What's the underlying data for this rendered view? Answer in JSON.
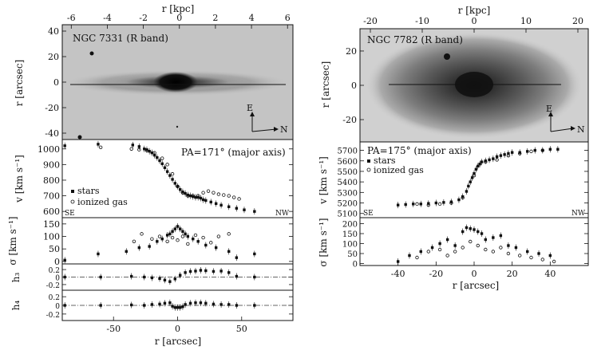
{
  "figure": {
    "top_axis_label": "r [kpc]",
    "bottom_axis_label": "r [arcsec]",
    "label_r_arcsec": "r [arcsec]",
    "label_v": "v [km s⁻¹]",
    "label_sigma": "σ [km s⁻¹]",
    "label_h3": "h₃",
    "label_h4": "h₄",
    "compass_E": "E",
    "compass_N": "N",
    "side_SE": "SE",
    "side_NW": "NW",
    "legend_stars": "stars",
    "legend_gas": "ionized gas"
  },
  "left": {
    "galaxy_label": "NGC 7331 (R band)",
    "pa_label": "PA=171° (major axis)"
  },
  "right": {
    "galaxy_label": "NGC 7782 (R band)",
    "pa_label": "PA=175° (major axis)"
  },
  "chart_data": [
    {
      "id": "ngc7331_image",
      "type": "image",
      "title": "NGC 7331 (R band)",
      "xlabel": "r [kpc]",
      "ylabel": "r [arcsec]",
      "xlim": [
        -6.5,
        6.3
      ],
      "ylim": [
        -45,
        45
      ],
      "xticks": [
        -6,
        -4,
        -2,
        0,
        2,
        4,
        6
      ],
      "yticks": [
        -40,
        -20,
        0,
        20,
        40
      ]
    },
    {
      "id": "ngc7331_v",
      "type": "scatter",
      "ylabel": "v [km s⁻¹]",
      "xlim": [
        -90,
        90
      ],
      "ylim": [
        560,
        1060
      ],
      "yticks": [
        600,
        700,
        800,
        900,
        1000
      ],
      "series": [
        {
          "name": "stars",
          "x": [
            -88,
            -62,
            -35,
            -30,
            -26,
            -24,
            -22,
            -20,
            -18,
            -16,
            -14,
            -12,
            -10,
            -8,
            -6,
            -4,
            -2,
            0,
            2,
            4,
            6,
            8,
            10,
            12,
            14,
            16,
            18,
            20,
            22,
            26,
            30,
            34,
            40,
            46,
            52,
            60
          ],
          "y": [
            1020,
            1030,
            1025,
            1015,
            1000,
            995,
            985,
            975,
            960,
            945,
            925,
            905,
            880,
            855,
            830,
            805,
            780,
            760,
            740,
            725,
            715,
            705,
            700,
            695,
            690,
            690,
            685,
            675,
            670,
            660,
            650,
            640,
            630,
            620,
            610,
            600
          ]
        },
        {
          "name": "ionized gas",
          "x": [
            -60,
            -36,
            -30,
            -24,
            -18,
            -12,
            -8,
            -4,
            0,
            4,
            8,
            12,
            16,
            20,
            24,
            28,
            32,
            36,
            40,
            44,
            48
          ],
          "y": [
            1010,
            1000,
            995,
            990,
            975,
            940,
            900,
            840,
            760,
            720,
            700,
            700,
            700,
            720,
            730,
            720,
            710,
            705,
            700,
            690,
            680
          ]
        }
      ]
    },
    {
      "id": "ngc7331_sigma",
      "type": "scatter",
      "ylabel": "σ [km s⁻¹]",
      "xlim": [
        -90,
        90
      ],
      "ylim": [
        -10,
        175
      ],
      "yticks": [
        0,
        50,
        100,
        150
      ],
      "series": [
        {
          "name": "stars",
          "x": [
            -88,
            -62,
            -40,
            -30,
            -22,
            -16,
            -12,
            -8,
            -6,
            -4,
            -2,
            0,
            2,
            4,
            6,
            8,
            12,
            16,
            22,
            30,
            40,
            46,
            60
          ],
          "y": [
            5,
            30,
            40,
            55,
            60,
            80,
            90,
            105,
            110,
            120,
            130,
            140,
            130,
            120,
            110,
            100,
            90,
            80,
            65,
            55,
            40,
            15,
            30
          ]
        },
        {
          "name": "ionized gas",
          "x": [
            -34,
            -28,
            -20,
            -14,
            -8,
            -4,
            0,
            4,
            8,
            14,
            20,
            26,
            32,
            40
          ],
          "y": [
            80,
            110,
            90,
            100,
            80,
            95,
            85,
            100,
            70,
            105,
            95,
            75,
            100,
            110
          ]
        }
      ]
    },
    {
      "id": "ngc7331_h3",
      "type": "scatter",
      "ylabel": "h₃",
      "xlim": [
        -90,
        90
      ],
      "ylim": [
        -0.35,
        0.35
      ],
      "yticks": [
        -0.2,
        0,
        0.2
      ],
      "series": [
        {
          "name": "stars",
          "x": [
            -88,
            -60,
            -36,
            -26,
            -20,
            -14,
            -10,
            -6,
            -2,
            2,
            6,
            10,
            14,
            18,
            22,
            28,
            34,
            40,
            46,
            60
          ],
          "y": [
            0,
            0,
            0.02,
            0.0,
            -0.02,
            -0.04,
            -0.08,
            -0.12,
            -0.05,
            0.05,
            0.12,
            0.15,
            0.16,
            0.18,
            0.17,
            0.15,
            0.16,
            0.12,
            0.02,
            0.0
          ]
        }
      ]
    },
    {
      "id": "ngc7331_h4",
      "type": "scatter",
      "ylabel": "h₄",
      "xlim": [
        -90,
        90
      ],
      "ylim": [
        -0.35,
        0.35
      ],
      "yticks": [
        -0.2,
        0,
        0.2
      ],
      "series": [
        {
          "name": "stars",
          "x": [
            -88,
            -60,
            -36,
            -26,
            -20,
            -14,
            -10,
            -6,
            -4,
            -2,
            0,
            2,
            4,
            6,
            10,
            14,
            18,
            22,
            28,
            34,
            40,
            46,
            60
          ],
          "y": [
            0,
            0,
            0.01,
            0.0,
            0.02,
            0.03,
            0.05,
            0.06,
            -0.02,
            -0.05,
            -0.05,
            -0.05,
            -0.03,
            0.02,
            0.05,
            0.06,
            0.06,
            0.05,
            0.03,
            0.02,
            0.02,
            0.0,
            0.0
          ]
        }
      ]
    },
    {
      "id": "ngc7782_image",
      "type": "image",
      "title": "NGC 7782 (R band)",
      "xlabel": "r [kpc]",
      "ylabel": "r [arcsec]",
      "xlim": [
        -22,
        22
      ],
      "ylim": [
        -33,
        33
      ],
      "xticks": [
        -20,
        -10,
        0,
        10,
        20
      ],
      "yticks": [
        -20,
        0,
        20
      ]
    },
    {
      "id": "ngc7782_v",
      "type": "scatter",
      "ylabel": "v [km s⁻¹]",
      "xlabel": "",
      "xlim": [
        -60,
        60
      ],
      "ylim": [
        5060,
        5780
      ],
      "yticks": [
        5100,
        5200,
        5300,
        5400,
        5500,
        5600,
        5700
      ],
      "series": [
        {
          "name": "stars",
          "x": [
            -40,
            -36,
            -32,
            -28,
            -24,
            -20,
            -16,
            -12,
            -8,
            -6,
            -4,
            -3,
            -2,
            -1,
            0,
            1,
            2,
            3,
            4,
            6,
            8,
            10,
            12,
            14,
            16,
            18,
            20,
            24,
            28,
            32,
            36,
            40,
            44
          ],
          "y": [
            5180,
            5185,
            5190,
            5190,
            5195,
            5200,
            5205,
            5210,
            5230,
            5260,
            5310,
            5360,
            5400,
            5440,
            5480,
            5520,
            5550,
            5570,
            5590,
            5600,
            5610,
            5620,
            5640,
            5650,
            5660,
            5670,
            5680,
            5680,
            5690,
            5700,
            5700,
            5710,
            5710
          ]
        },
        {
          "name": "ionized gas",
          "x": [
            -30,
            -24,
            -18,
            -12,
            -6,
            0,
            6,
            12,
            18,
            24,
            30,
            36
          ],
          "y": [
            5190,
            5180,
            5190,
            5200,
            5250,
            5460,
            5590,
            5610,
            5650,
            5670,
            5690,
            5700
          ]
        }
      ]
    },
    {
      "id": "ngc7782_sigma",
      "type": "scatter",
      "ylabel": "σ [km s⁻¹]",
      "xlabel": "r [arcsec]",
      "xlim": [
        -60,
        60
      ],
      "ylim": [
        -10,
        230
      ],
      "xticks": [
        -40,
        -20,
        0,
        20,
        40
      ],
      "yticks": [
        0,
        50,
        100,
        150,
        200
      ],
      "series": [
        {
          "name": "stars",
          "x": [
            -40,
            -34,
            -28,
            -22,
            -18,
            -14,
            -10,
            -6,
            -4,
            -2,
            0,
            2,
            4,
            6,
            10,
            14,
            18,
            22,
            28,
            34,
            40
          ],
          "y": [
            10,
            40,
            60,
            80,
            100,
            120,
            90,
            160,
            180,
            175,
            170,
            160,
            150,
            120,
            130,
            140,
            90,
            80,
            60,
            50,
            40
          ]
        },
        {
          "name": "ionized gas",
          "x": [
            -30,
            -24,
            -18,
            -14,
            -10,
            -6,
            -2,
            2,
            6,
            10,
            14,
            18,
            24,
            30,
            36,
            42
          ],
          "y": [
            30,
            60,
            70,
            40,
            60,
            80,
            110,
            90,
            70,
            60,
            80,
            50,
            40,
            30,
            20,
            10
          ]
        }
      ]
    }
  ]
}
